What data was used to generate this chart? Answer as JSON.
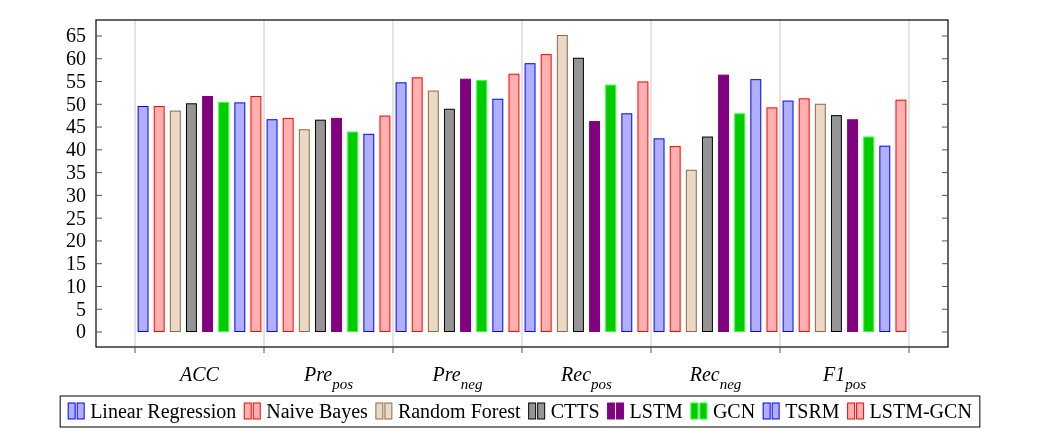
{
  "chart_data": {
    "type": "bar",
    "categories": [
      "ACC",
      "Pre$_{pos}$",
      "Pre$_{neg}$",
      "Rec$_{pos}$",
      "Rec$_{neg}$",
      "F1$_{pos}$"
    ],
    "series": [
      {
        "name": "Linear Regression",
        "color": "#b0b0ff",
        "values": [
          49.4,
          46.5,
          54.6,
          58.8,
          42.3,
          50.6
        ]
      },
      {
        "name": "Naive Bayes",
        "color": "#ffb0b0",
        "values": [
          49.4,
          46.8,
          55.7,
          60.8,
          40.6,
          51.1
        ]
      },
      {
        "name": "Random Forest",
        "color": "#ead9c4",
        "values": [
          48.4,
          44.3,
          52.8,
          65.0,
          35.4,
          49.9
        ]
      },
      {
        "name": "CTTS",
        "color": "#959595",
        "values": [
          50.0,
          46.4,
          48.8,
          60.0,
          42.7,
          47.4
        ]
      },
      {
        "name": "LSTM",
        "color": "#800080",
        "values": [
          51.6,
          46.8,
          55.4,
          46.1,
          56.3,
          46.5
        ]
      },
      {
        "name": "GCN",
        "color": "#00cc00",
        "values": [
          50.3,
          43.8,
          55.1,
          54.1,
          47.8,
          42.7
        ]
      },
      {
        "name": "TSRM",
        "color": "#b0b0ff",
        "values": [
          50.2,
          43.3,
          51.0,
          47.8,
          55.3,
          40.7
        ]
      },
      {
        "name": "LSTM-GCN",
        "color": "#ffb0b0",
        "values": [
          51.6,
          47.3,
          56.5,
          54.8,
          49.1,
          50.8
        ]
      }
    ],
    "ylim": [
      -3.4,
      68.4
    ],
    "yticks": [
      0,
      5,
      10,
      15,
      20,
      25,
      30,
      35,
      40,
      45,
      50,
      55,
      60,
      65
    ],
    "grid": "x",
    "legend": "bottom"
  }
}
